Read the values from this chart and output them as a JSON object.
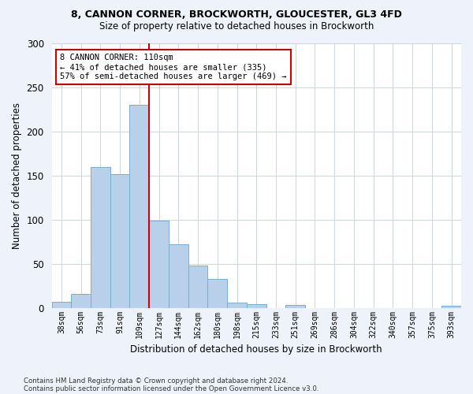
{
  "title1": "8, CANNON CORNER, BROCKWORTH, GLOUCESTER, GL3 4FD",
  "title2": "Size of property relative to detached houses in Brockworth",
  "xlabel": "Distribution of detached houses by size in Brockworth",
  "ylabel": "Number of detached properties",
  "categories": [
    "38sqm",
    "56sqm",
    "73sqm",
    "91sqm",
    "109sqm",
    "127sqm",
    "144sqm",
    "162sqm",
    "180sqm",
    "198sqm",
    "215sqm",
    "233sqm",
    "251sqm",
    "269sqm",
    "286sqm",
    "304sqm",
    "322sqm",
    "340sqm",
    "357sqm",
    "375sqm",
    "393sqm"
  ],
  "values": [
    7,
    16,
    160,
    152,
    230,
    99,
    72,
    48,
    33,
    6,
    4,
    0,
    3,
    0,
    0,
    0,
    0,
    0,
    0,
    0,
    2
  ],
  "bar_color": "#b8d0ea",
  "bar_edge_color": "#7aadd4",
  "vline_index": 4,
  "vline_color": "#cc0000",
  "annotation_text": "8 CANNON CORNER: 110sqm\n← 41% of detached houses are smaller (335)\n57% of semi-detached houses are larger (469) →",
  "annotation_box_color": "#ffffff",
  "annotation_box_edge": "#cc0000",
  "ylim": [
    0,
    300
  ],
  "yticks": [
    0,
    50,
    100,
    150,
    200,
    250,
    300
  ],
  "footer1": "Contains HM Land Registry data © Crown copyright and database right 2024.",
  "footer2": "Contains public sector information licensed under the Open Government Licence v3.0.",
  "bg_color": "#eef2fa",
  "plot_bg_color": "#ffffff",
  "grid_color": "#c8d4e8"
}
